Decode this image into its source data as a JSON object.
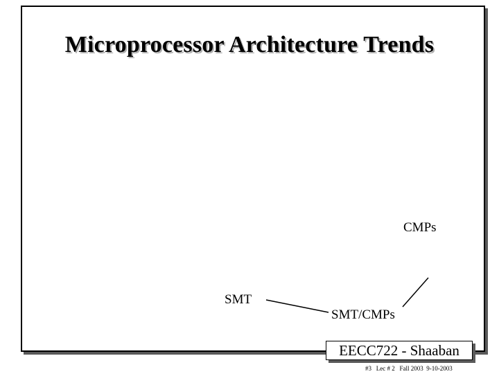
{
  "slide": {
    "title": "Microprocessor Architecture Trends",
    "labels": {
      "cmps": "CMPs",
      "smt": "SMT",
      "smt_cmps": "SMT/CMPs"
    }
  },
  "footer": {
    "course": "EECC722 - Shaaban",
    "meta": "#3   Lec # 2   Fall 2003  9-10-2003"
  },
  "colors": {
    "frame": "#000000",
    "shadow": "#5a5a5a",
    "background": "#ffffff"
  }
}
